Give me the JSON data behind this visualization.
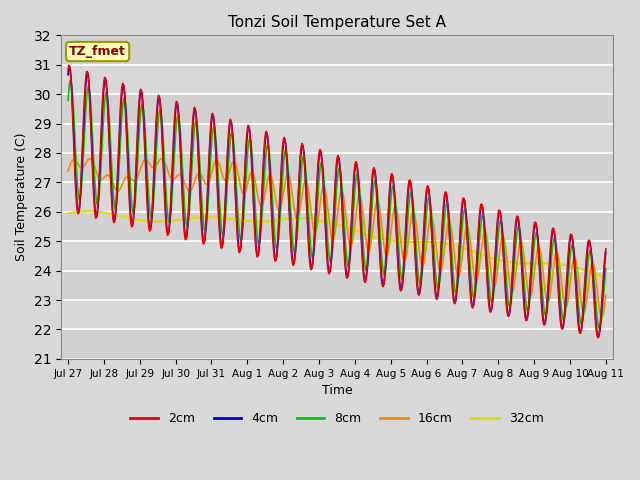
{
  "title": "Tonzi Soil Temperature Set A",
  "xlabel": "Time",
  "ylabel": "Soil Temperature (C)",
  "annotation": "TZ_fmet",
  "ylim": [
    21.0,
    32.0
  ],
  "yticks": [
    21.0,
    22.0,
    23.0,
    24.0,
    25.0,
    26.0,
    27.0,
    28.0,
    29.0,
    30.0,
    31.0,
    32.0
  ],
  "bg_color": "#d8d8d8",
  "plot_bg_color": "#d8d8d8",
  "grid_color": "#ffffff",
  "series_colors": {
    "2cm": "#ee0000",
    "4cm": "#0000dd",
    "8cm": "#00cc00",
    "16cm": "#ff8800",
    "32cm": "#dddd00"
  },
  "legend_labels": [
    "2cm",
    "4cm",
    "8cm",
    "16cm",
    "32cm"
  ],
  "xtick_labels": [
    "Jul 27",
    "Jul 28",
    "Jul 29",
    "Jul 30",
    "Jul 31",
    "Aug 1",
    "Aug 2",
    "Aug 3",
    "Aug 4",
    "Aug 5",
    "Aug 6",
    "Aug 7",
    "Aug 8",
    "Aug 9",
    "Aug 10",
    "Aug 11"
  ],
  "num_points": 720,
  "start_day": 0,
  "end_day": 15.0
}
